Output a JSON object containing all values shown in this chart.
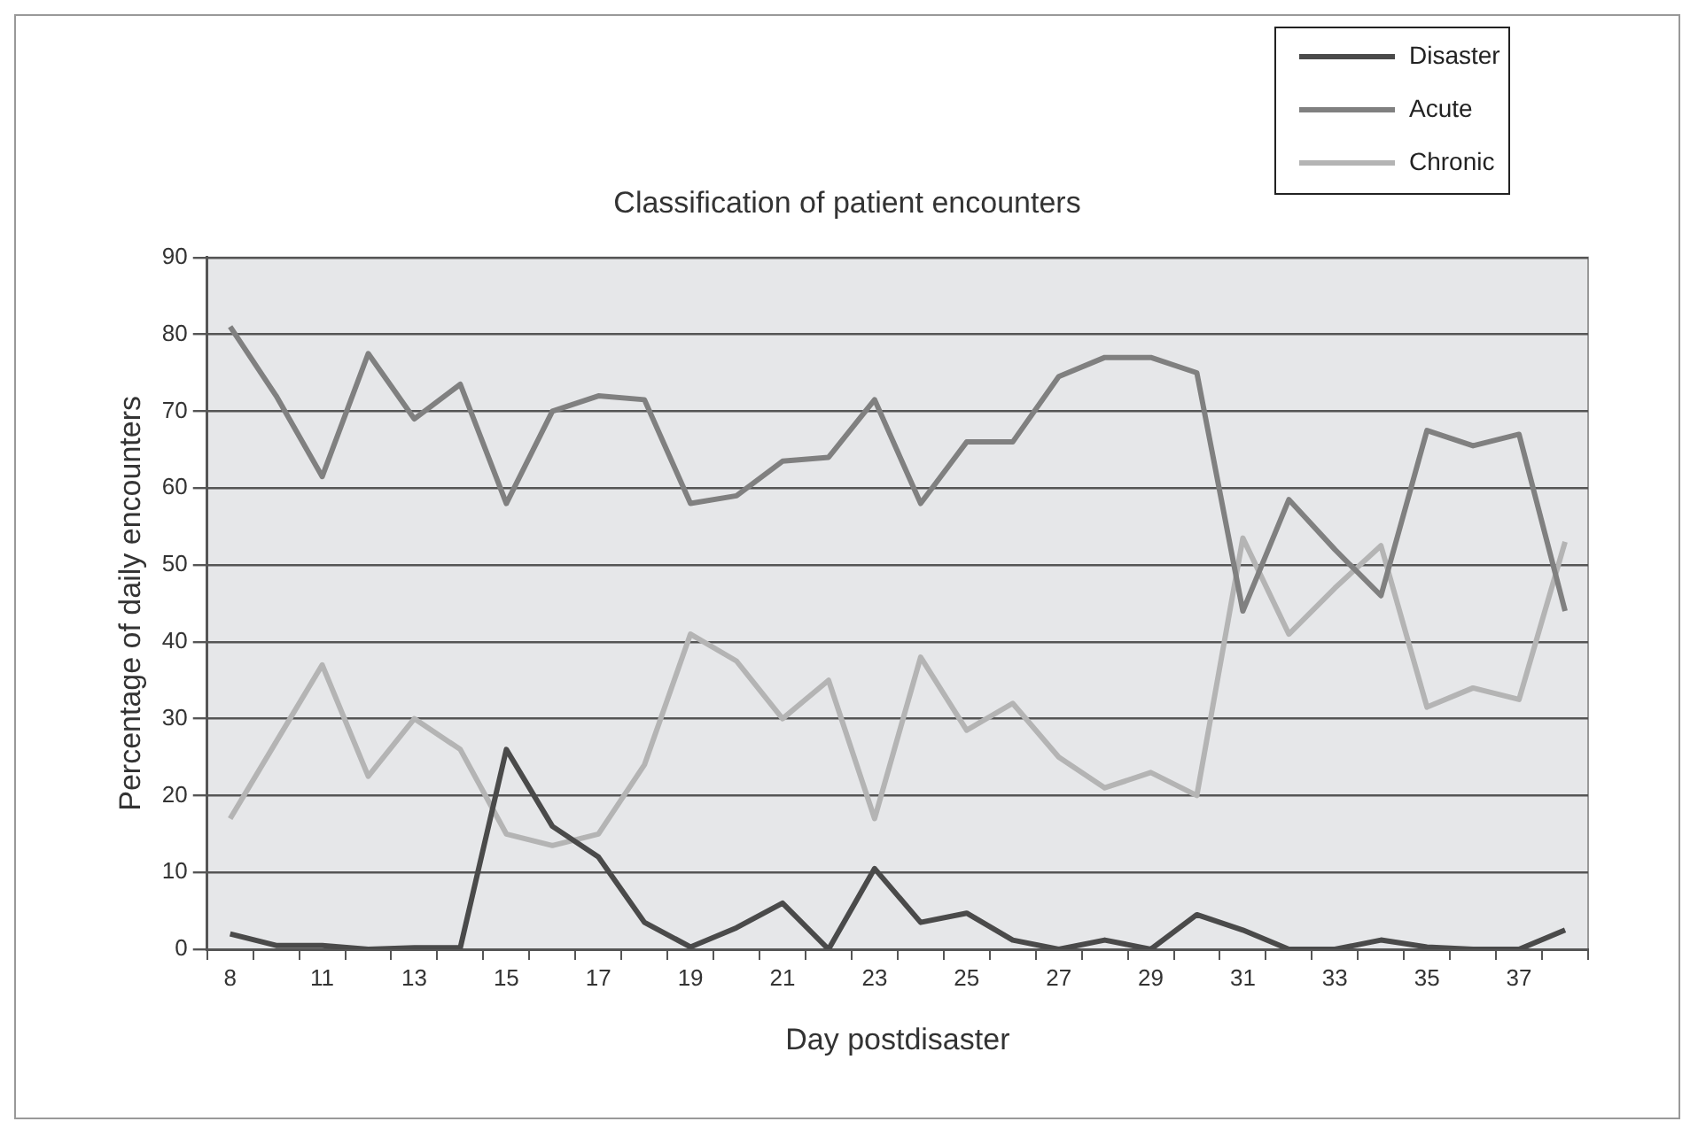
{
  "chart_data": {
    "type": "line",
    "title": "Classification of patient encounters",
    "xlabel": "Day postdisaster",
    "ylabel": "Percentage of daily encounters",
    "categories": [
      "8",
      null,
      "11",
      null,
      "13",
      null,
      "15",
      null,
      "17",
      null,
      "19",
      null,
      "21",
      null,
      "23",
      null,
      "25",
      null,
      "27",
      null,
      "29",
      null,
      "31",
      null,
      "33",
      null,
      "35",
      null,
      "37",
      null
    ],
    "series": [
      {
        "name": "Disaster",
        "color": "#4a4a4a",
        "values": [
          2,
          0.5,
          0.5,
          0,
          0.2,
          0.2,
          26,
          16,
          12,
          3.5,
          0.3,
          2.8,
          6,
          0,
          10.5,
          3.5,
          4.7,
          1.2,
          0,
          1.2,
          0,
          4.5,
          2.5,
          0,
          0,
          1.2,
          0.3,
          0,
          0,
          2.5
        ]
      },
      {
        "name": "Acute",
        "color": "#808080",
        "values": [
          81,
          72,
          61.5,
          77.5,
          69,
          73.5,
          58,
          70,
          72,
          71.5,
          58,
          59,
          63.5,
          64,
          71.5,
          58,
          66,
          66,
          74.5,
          77,
          77,
          75,
          44,
          58.5,
          52,
          46,
          67.5,
          65.5,
          67,
          44
        ]
      },
      {
        "name": "Chronic",
        "color": "#b4b4b4",
        "values": [
          17,
          27,
          37,
          22.5,
          30,
          26,
          15,
          13.5,
          15,
          24,
          41,
          37.5,
          30,
          35,
          17,
          38,
          28.5,
          32,
          25,
          21,
          23,
          20,
          53.5,
          41,
          47,
          52.5,
          31.5,
          34,
          32.5,
          53
        ]
      }
    ],
    "ylim": [
      0,
      90
    ],
    "yticks": [
      0,
      10,
      20,
      30,
      40,
      50,
      60,
      70,
      80,
      90
    ],
    "grid": "y",
    "legend": "top right",
    "marker": "none",
    "line_style": "solid"
  }
}
